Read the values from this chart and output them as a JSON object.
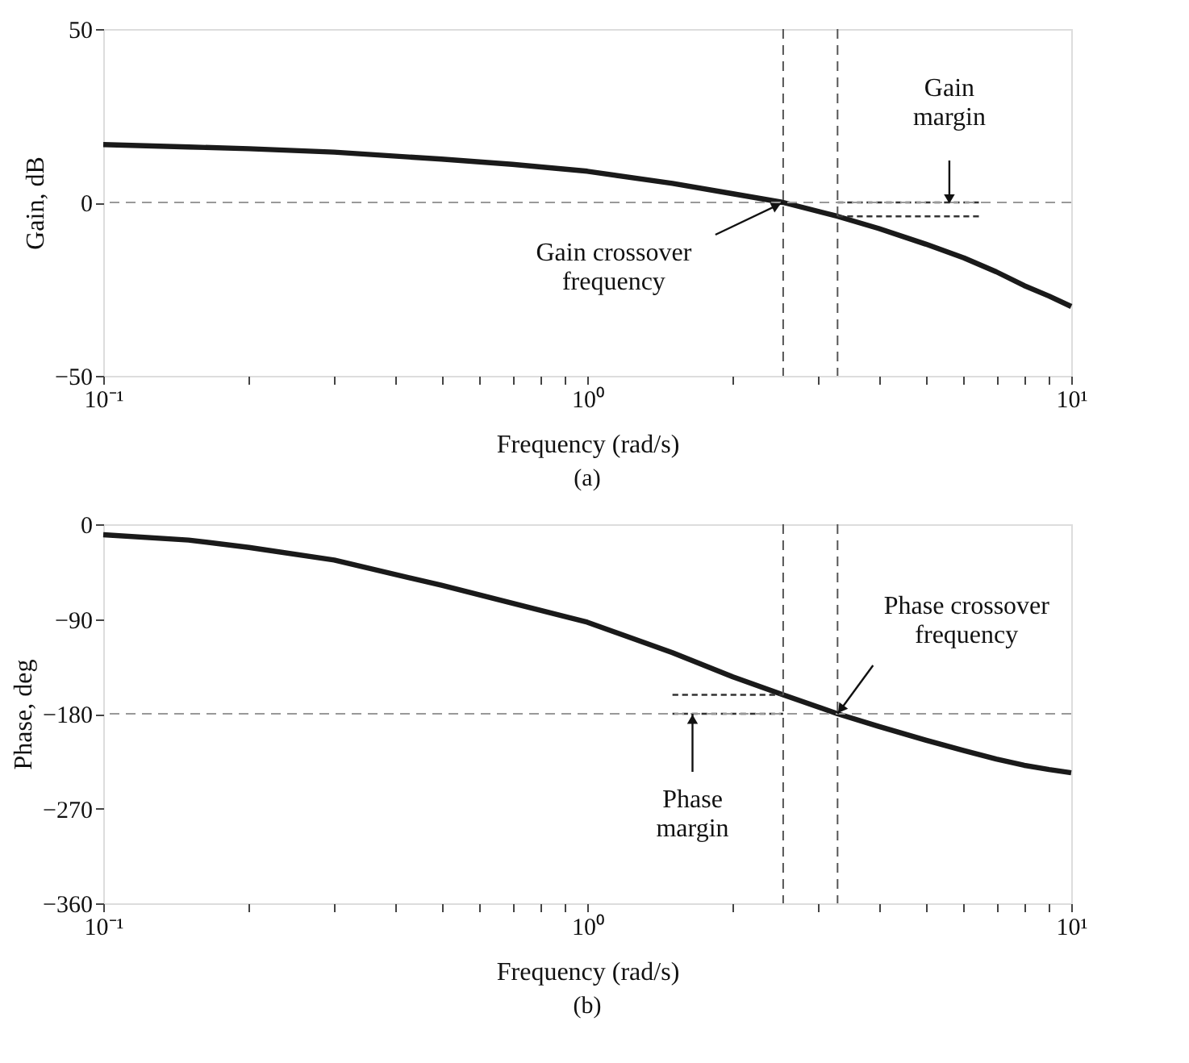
{
  "chart_data": [
    {
      "type": "line",
      "title": "(a)",
      "xlabel": "Frequency (rad/s)",
      "ylabel": "Gain, dB",
      "log": "x",
      "grid": false,
      "xlim": [
        0.1,
        10
      ],
      "xticks": [
        {
          "value": 0.1,
          "label": "10⁻¹"
        },
        {
          "value": 0.2,
          "label": null
        },
        {
          "value": 0.3,
          "label": null
        },
        {
          "value": 0.4,
          "label": null
        },
        {
          "value": 0.5,
          "label": null
        },
        {
          "value": 0.6,
          "label": null
        },
        {
          "value": 0.7,
          "label": null
        },
        {
          "value": 0.8,
          "label": null
        },
        {
          "value": 0.9,
          "label": null
        },
        {
          "value": 1,
          "label": "10⁰"
        },
        {
          "value": 2,
          "label": null
        },
        {
          "value": 3,
          "label": null
        },
        {
          "value": 4,
          "label": null
        },
        {
          "value": 5,
          "label": null
        },
        {
          "value": 6,
          "label": null
        },
        {
          "value": 7,
          "label": null
        },
        {
          "value": 8,
          "label": null
        },
        {
          "value": 9,
          "label": null
        },
        {
          "value": 10,
          "label": "10¹"
        }
      ],
      "ylim": [
        -50,
        50
      ],
      "yticks": [
        -50,
        0,
        50
      ],
      "series": [
        {
          "color": "#1a1a1a",
          "x": [
            0.1,
            0.15,
            0.2,
            0.3,
            0.5,
            0.7,
            1,
            1.5,
            2,
            2.54,
            3.29,
            4,
            5,
            6,
            7,
            8,
            9,
            10
          ],
          "values": [
            16.7,
            16,
            15.5,
            14.5,
            12.5,
            11,
            9,
            5.5,
            2.5,
            0,
            -4,
            -7.5,
            -12,
            -16,
            -20,
            -24,
            -27,
            -30
          ]
        },
        {
          "type": "line",
          "line_style": "dashed",
          "color": "#333333",
          "x": [
            3.29,
            6.5
          ],
          "values": [
            0,
            0
          ]
        },
        {
          "type": "line",
          "line_style": "dashed",
          "color": "#333333",
          "x": [
            3.29,
            6.5
          ],
          "values": [
            -4,
            -4
          ]
        }
      ],
      "ref_lines": [
        {
          "axis": "y",
          "value": 0,
          "color": "#999999",
          "line_style": "dashed"
        },
        {
          "axis": "x",
          "value": 2.54,
          "color": "#555555",
          "line_style": "dashed"
        },
        {
          "axis": "x",
          "value": 3.29,
          "color": "#555555",
          "line_style": "dashed"
        }
      ],
      "annotations": [
        {
          "text": "Gain crossover frequency",
          "x": 2.54,
          "y": 0
        },
        {
          "text": "Gain margin",
          "x": 5.6,
          "y": 0
        }
      ]
    },
    {
      "type": "line",
      "title": "(b)",
      "xlabel": "Frequency (rad/s)",
      "ylabel": "Phase, deg",
      "log": "x",
      "grid": false,
      "xlim": [
        0.1,
        10
      ],
      "xticks": [
        {
          "value": 0.1,
          "label": "10⁻¹"
        },
        {
          "value": 0.2,
          "label": null
        },
        {
          "value": 0.3,
          "label": null
        },
        {
          "value": 0.4,
          "label": null
        },
        {
          "value": 0.5,
          "label": null
        },
        {
          "value": 0.6,
          "label": null
        },
        {
          "value": 0.7,
          "label": null
        },
        {
          "value": 0.8,
          "label": null
        },
        {
          "value": 0.9,
          "label": null
        },
        {
          "value": 1,
          "label": "10⁰"
        },
        {
          "value": 2,
          "label": null
        },
        {
          "value": 3,
          "label": null
        },
        {
          "value": 4,
          "label": null
        },
        {
          "value": 5,
          "label": null
        },
        {
          "value": 6,
          "label": null
        },
        {
          "value": 7,
          "label": null
        },
        {
          "value": 8,
          "label": null
        },
        {
          "value": 9,
          "label": null
        },
        {
          "value": 10,
          "label": "10¹"
        }
      ],
      "ylim": [
        -360,
        0
      ],
      "yticks": [
        -360,
        -270,
        -180,
        -90,
        0
      ],
      "series": [
        {
          "color": "#1a1a1a",
          "x": [
            0.1,
            0.15,
            0.2,
            0.3,
            0.5,
            0.7,
            1,
            1.5,
            2,
            2.54,
            3.29,
            4,
            5,
            6,
            7,
            8,
            9,
            10
          ],
          "values": [
            -10,
            -15,
            -22,
            -34,
            -58,
            -75,
            -93,
            -122,
            -145,
            -162,
            -180,
            -192,
            -205,
            -215,
            -223,
            -229,
            -233,
            -236
          ]
        },
        {
          "type": "line",
          "line_style": "dashed",
          "color": "#333333",
          "x": [
            1.5,
            2.54
          ],
          "values": [
            -162,
            -162
          ]
        },
        {
          "type": "line",
          "line_style": "dashed",
          "color": "#333333",
          "x": [
            1.5,
            2.54
          ],
          "values": [
            -180,
            -180
          ]
        }
      ],
      "ref_lines": [
        {
          "axis": "y",
          "value": -180,
          "color": "#999999",
          "line_style": "dashed"
        },
        {
          "axis": "x",
          "value": 2.54,
          "color": "#555555",
          "line_style": "dashed"
        },
        {
          "axis": "x",
          "value": 3.29,
          "color": "#555555",
          "line_style": "dashed"
        }
      ],
      "annotations": [
        {
          "text": "Phase margin",
          "x": 1.65,
          "y": -180
        },
        {
          "text": "Phase crossover frequency",
          "x": 3.29,
          "y": -180
        }
      ]
    }
  ]
}
